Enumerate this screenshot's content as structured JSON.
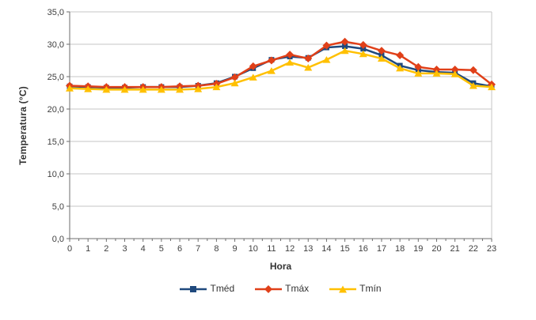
{
  "chart_data": {
    "type": "line",
    "x_label": "Hora",
    "y_label": "Temperatura (°C)",
    "x": [
      0,
      1,
      2,
      3,
      4,
      5,
      6,
      7,
      8,
      9,
      10,
      11,
      12,
      13,
      14,
      15,
      16,
      17,
      18,
      19,
      20,
      21,
      22,
      23
    ],
    "x_tick_labels": [
      "0",
      "1",
      "2",
      "3",
      "4",
      "5",
      "6",
      "7",
      "8",
      "9",
      "10",
      "11",
      "12",
      "13",
      "14",
      "15",
      "16",
      "17",
      "18",
      "19",
      "20",
      "21",
      "22",
      "23"
    ],
    "ylim": [
      0,
      35
    ],
    "y_tick_step": 5,
    "y_tick_labels": [
      "0,0",
      "5,0",
      "10,0",
      "15,0",
      "20,0",
      "25,0",
      "30,0",
      "35,0"
    ],
    "grid": "horizontal",
    "legend_position": "bottom",
    "series": [
      {
        "name": "Tméd",
        "key": "tmed",
        "marker": "square",
        "color": "#1F497D",
        "values": [
          23.5,
          23.4,
          23.3,
          23.3,
          23.4,
          23.4,
          23.4,
          23.6,
          24.0,
          25.0,
          26.3,
          27.6,
          28.1,
          27.9,
          29.5,
          29.7,
          29.3,
          28.3,
          26.7,
          26.0,
          25.7,
          25.6,
          24.0,
          23.5
        ]
      },
      {
        "name": "Tmáx",
        "key": "tmax",
        "marker": "diamond",
        "color": "#E04019",
        "values": [
          23.6,
          23.5,
          23.4,
          23.4,
          23.4,
          23.4,
          23.5,
          23.6,
          23.9,
          24.9,
          26.6,
          27.5,
          28.4,
          27.8,
          29.8,
          30.4,
          29.9,
          29.0,
          28.3,
          26.5,
          26.1,
          26.1,
          26.0,
          23.8
        ]
      },
      {
        "name": "Tmín",
        "key": "tmin",
        "marker": "triangle",
        "color": "#FFC000",
        "values": [
          23.2,
          23.1,
          23.0,
          23.0,
          23.0,
          23.0,
          23.0,
          23.1,
          23.4,
          24.0,
          24.9,
          25.9,
          27.2,
          26.4,
          27.6,
          29.0,
          28.5,
          27.8,
          26.3,
          25.5,
          25.5,
          25.4,
          23.6,
          23.4
        ]
      }
    ],
    "colors": {
      "background": "#FFFFFF",
      "gridline": "#C6C6C6",
      "axis": "#6E6E6E",
      "tick_text": "#3F3F3F"
    }
  }
}
